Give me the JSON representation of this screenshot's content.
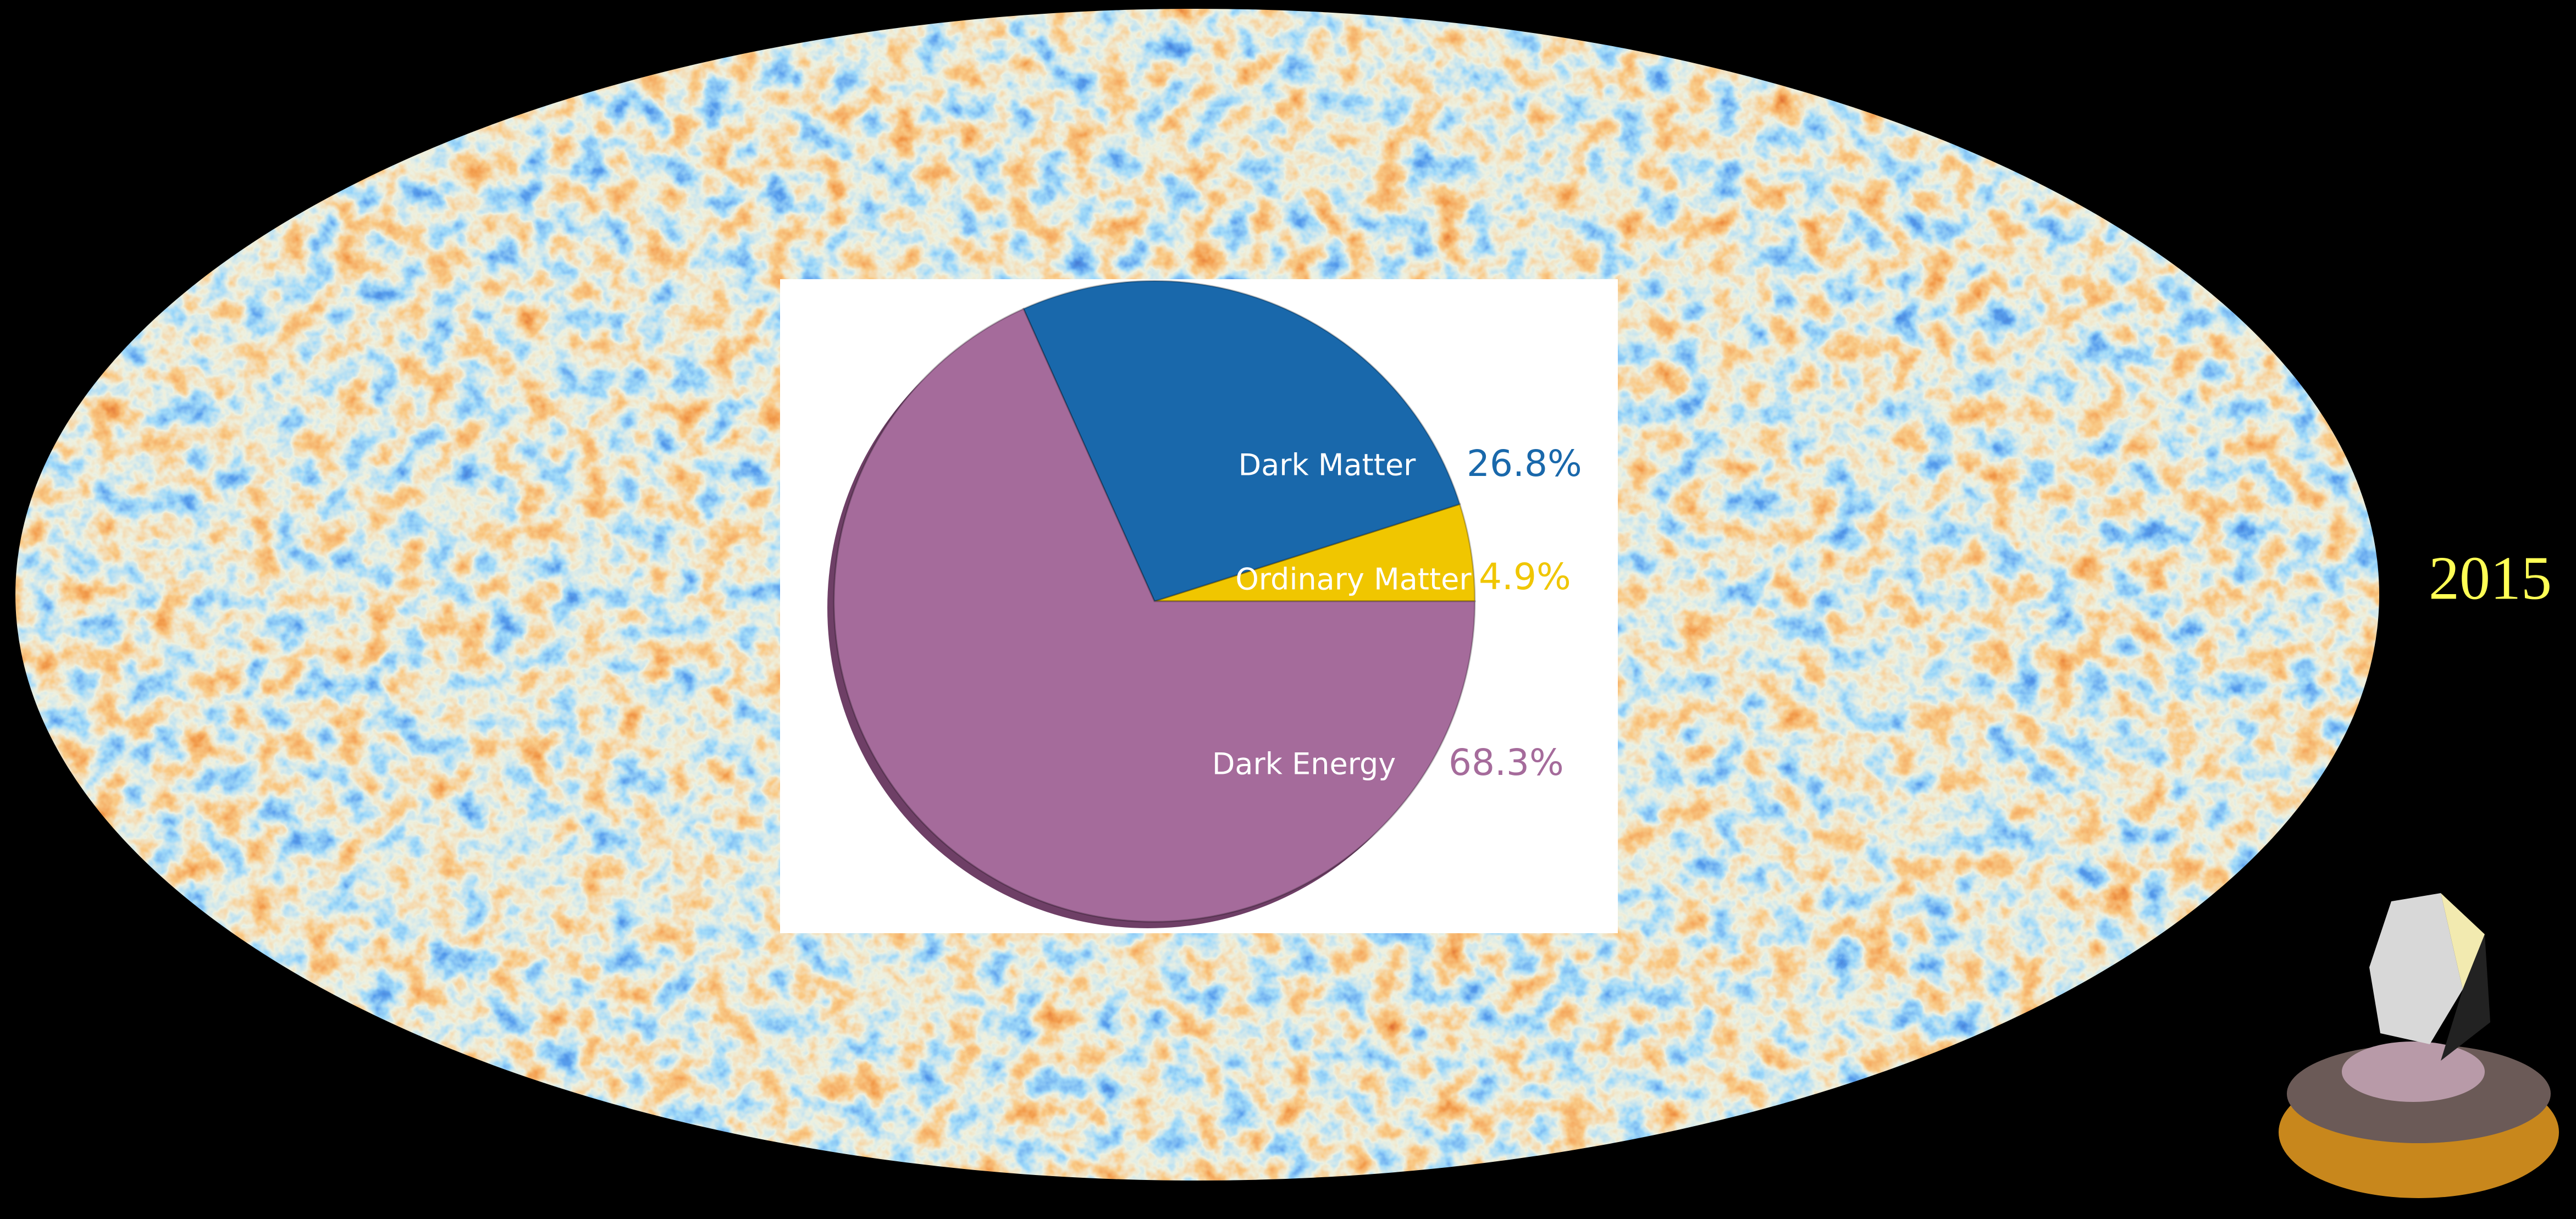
{
  "chart_data": {
    "type": "pie",
    "categories": [
      "Ordinary Matter",
      "Dark Matter",
      "Dark Energy"
    ],
    "values": [
      4.9,
      26.8,
      68.3
    ],
    "value_labels": [
      "4.9%",
      "26.8%",
      "68.3%"
    ],
    "colors": [
      "#f0c600",
      "#1968ab",
      "#a56b9b"
    ],
    "annotation": "2015"
  }
}
